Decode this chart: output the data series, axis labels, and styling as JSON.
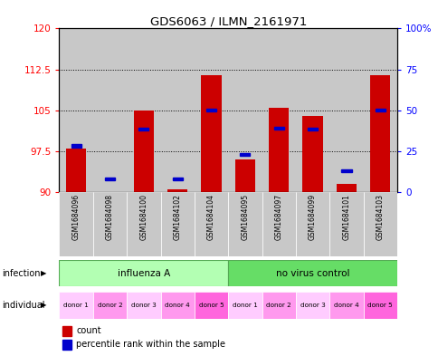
{
  "title": "GDS6063 / ILMN_2161971",
  "samples": [
    "GSM1684096",
    "GSM1684098",
    "GSM1684100",
    "GSM1684102",
    "GSM1684104",
    "GSM1684095",
    "GSM1684097",
    "GSM1684099",
    "GSM1684101",
    "GSM1684103"
  ],
  "red_bar_top": [
    98.0,
    90.1,
    105.0,
    90.5,
    111.5,
    96.0,
    105.5,
    104.0,
    91.5,
    111.5
  ],
  "blue_sq_val": [
    98.5,
    92.5,
    101.5,
    92.5,
    105.0,
    97.0,
    101.8,
    101.5,
    94.0,
    105.0
  ],
  "bar_baseline": 90,
  "ylim": [
    90,
    120
  ],
  "y_left_ticks": [
    90,
    97.5,
    105,
    112.5,
    120
  ],
  "y_right_ticks": [
    0,
    25,
    50,
    75,
    100
  ],
  "bar_color": "#cc0000",
  "blue_color": "#0000cc",
  "bg_gray": "#c8c8c8",
  "infection_color_left": "#b3ffb3",
  "infection_color_right": "#66dd66",
  "ind_colors": [
    "#ffccff",
    "#ff99ee",
    "#ffccff",
    "#ff99ee",
    "#ff66dd",
    "#ffccff",
    "#ff99ee",
    "#ffccff",
    "#ff99ee",
    "#ff66dd"
  ],
  "legend_red": "count",
  "legend_blue": "percentile rank within the sample",
  "individual_labels": [
    "donor 1",
    "donor 2",
    "donor 3",
    "donor 4",
    "donor 5",
    "donor 1",
    "donor 2",
    "donor 3",
    "donor 4",
    "donor 5"
  ]
}
